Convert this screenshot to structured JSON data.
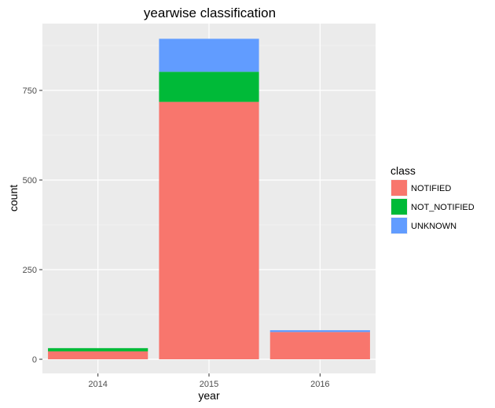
{
  "chart_data": {
    "type": "bar",
    "stacked": true,
    "title": "yearwise classification",
    "xlabel": "year",
    "ylabel": "count",
    "categories": [
      "2014",
      "2015",
      "2016"
    ],
    "series": [
      {
        "name": "NOTIFIED",
        "color": "#F8766D",
        "values": [
          22,
          718,
          76
        ]
      },
      {
        "name": "NOT_NOTIFIED",
        "color": "#00BA38",
        "values": [
          9,
          84,
          0
        ]
      },
      {
        "name": "UNKNOWN",
        "color": "#619CFF",
        "values": [
          0,
          92,
          5
        ]
      }
    ],
    "ylim": [
      0,
      950
    ],
    "yticks": [
      0,
      250,
      500,
      750
    ],
    "grid": true,
    "legend": {
      "title": "class",
      "position": "right"
    }
  }
}
